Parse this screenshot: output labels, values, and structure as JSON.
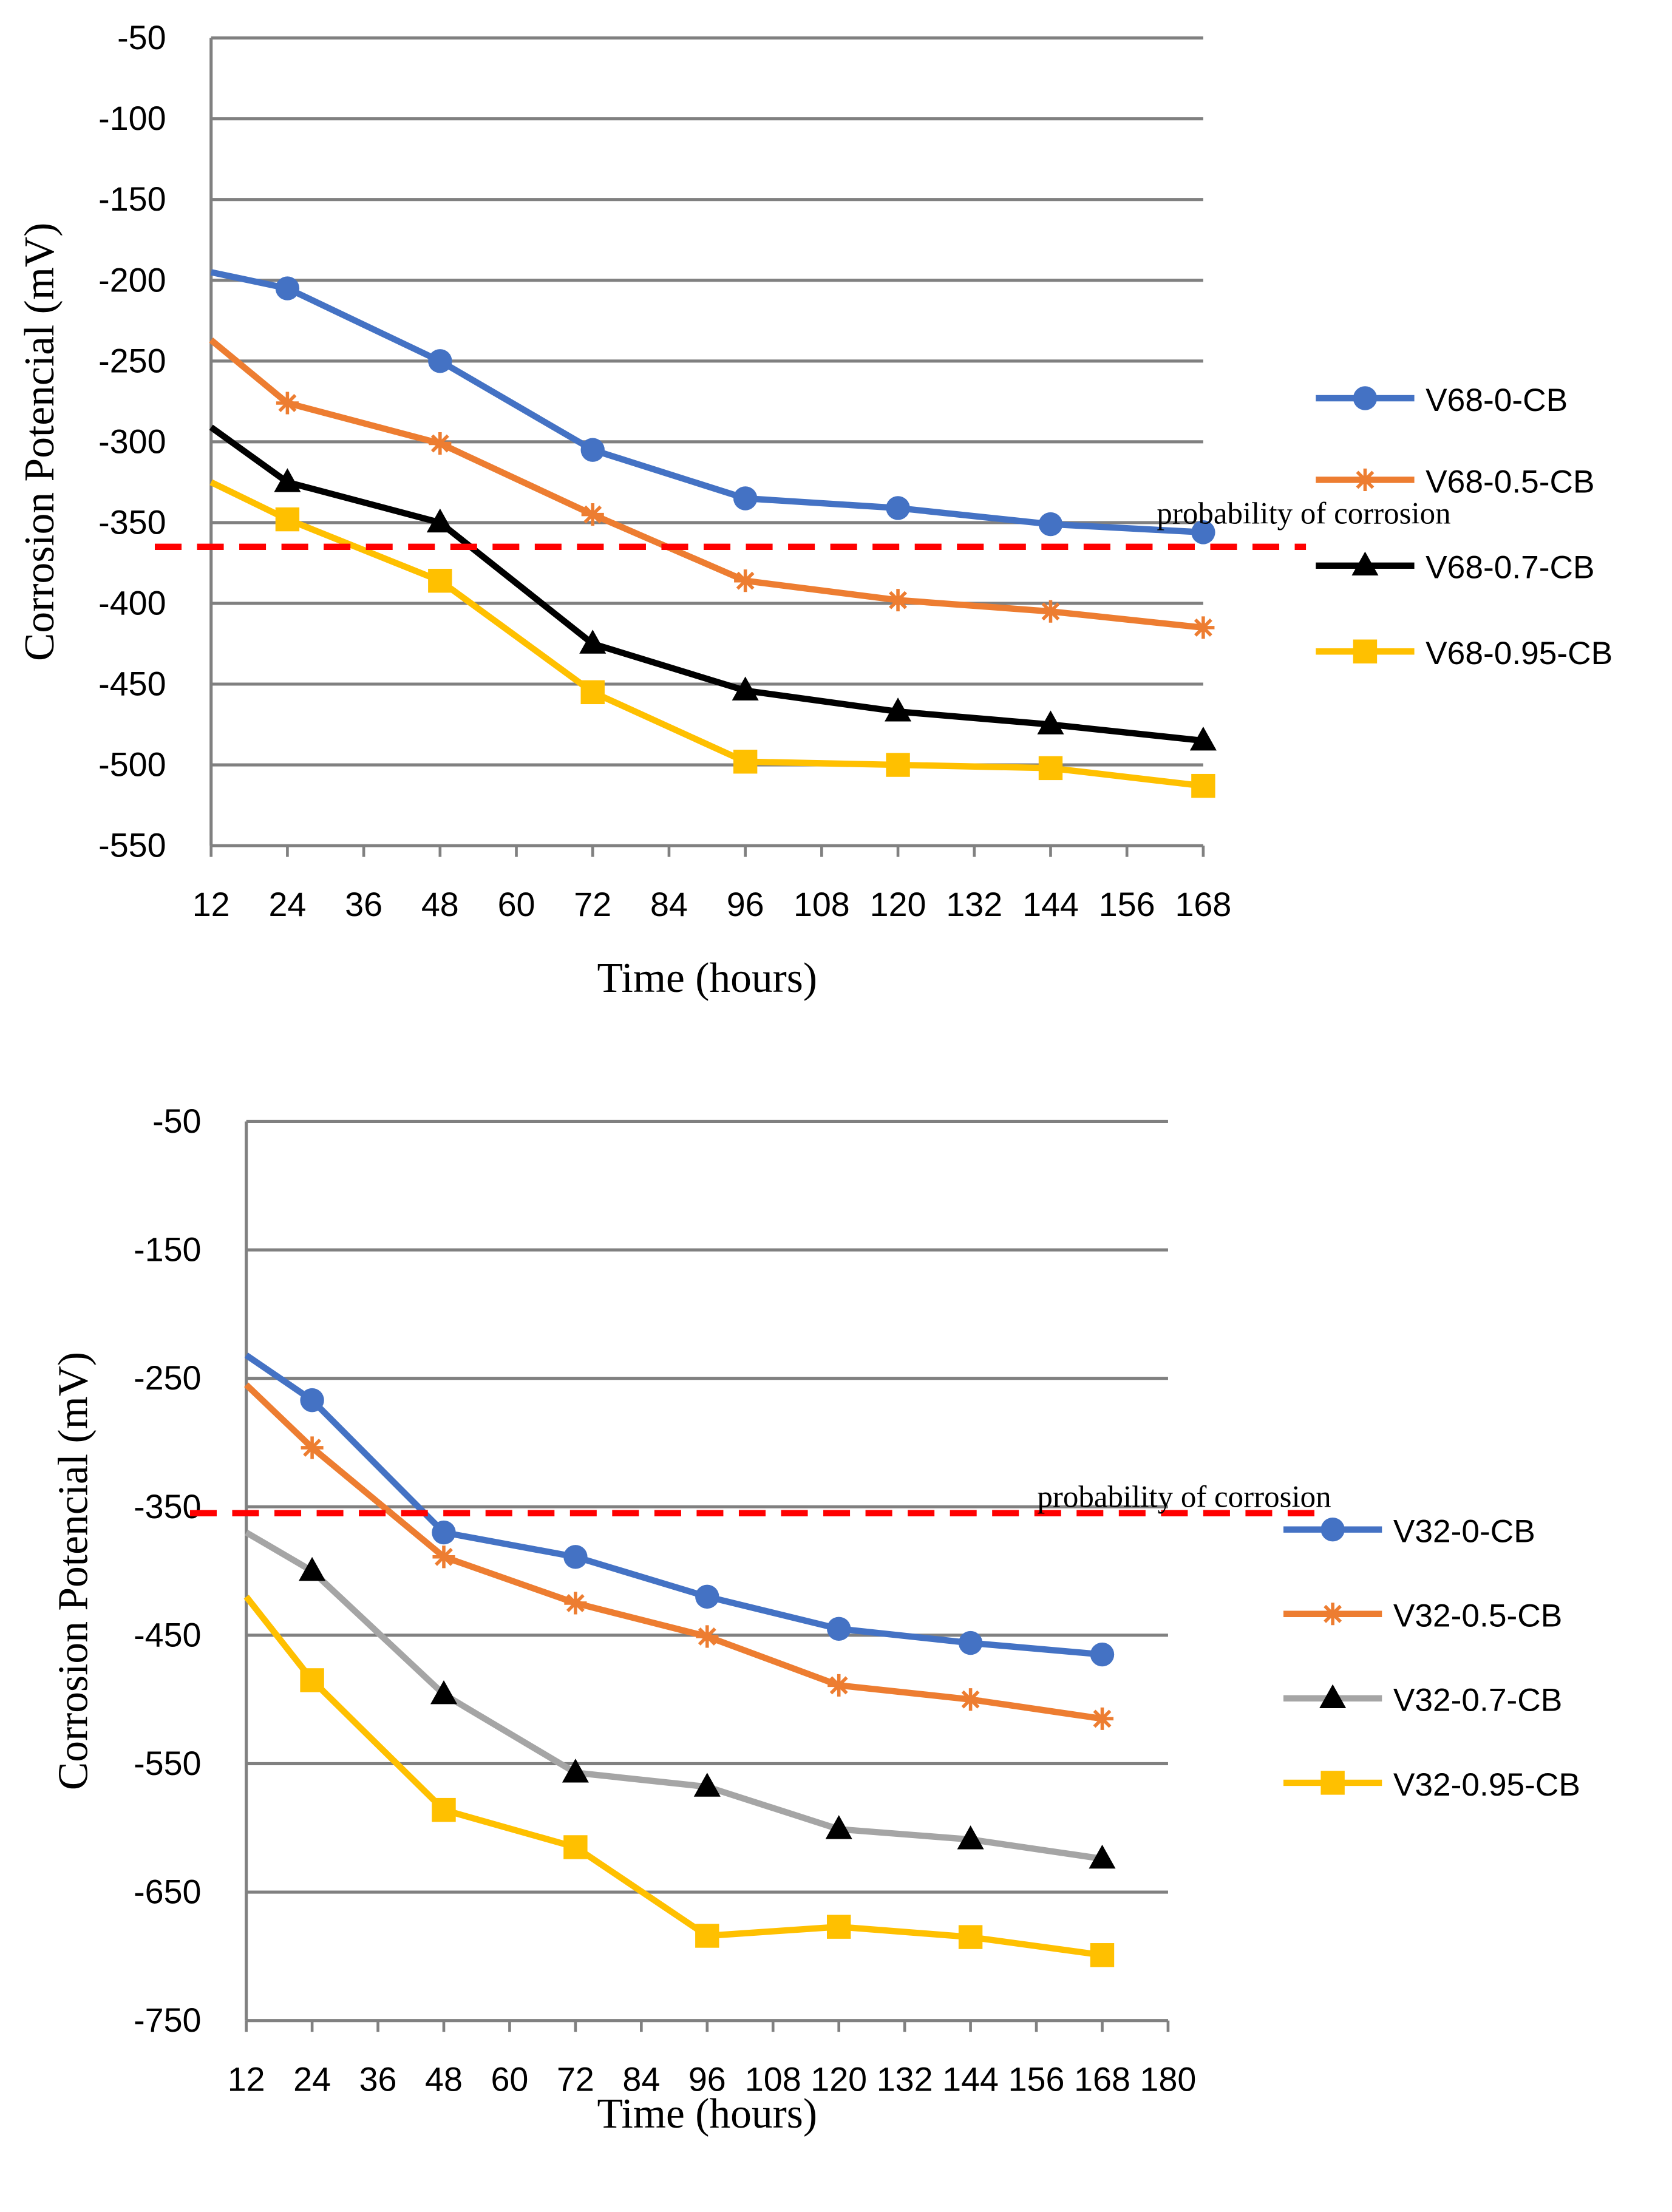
{
  "chart_data": [
    {
      "type": "line",
      "xlabel": "Time (hours)",
      "ylabel": "Corrosion Potencial (mV)",
      "xlim": [
        12,
        168
      ],
      "xticks": [
        12,
        24,
        36,
        48,
        60,
        72,
        84,
        96,
        108,
        120,
        132,
        144,
        156,
        168
      ],
      "ylim": [
        -550,
        -50
      ],
      "yticks": [
        -50,
        -100,
        -150,
        -200,
        -250,
        -300,
        -350,
        -400,
        -450,
        -500,
        -550
      ],
      "grid": "horizontal",
      "legend_position": "right",
      "threshold": {
        "value": -365,
        "label": "probability of corrosion",
        "color": "#ff0000"
      },
      "series": [
        {
          "name": "V68-0-CB",
          "color": "#4472c4",
          "marker": "circle",
          "x": [
            12,
            24,
            48,
            72,
            96,
            120,
            144,
            168
          ],
          "values": [
            -195,
            -205,
            -250,
            -305,
            -335,
            -341,
            -351,
            -356
          ]
        },
        {
          "name": "V68-0.5-CB",
          "color": "#ed7d31",
          "marker": "star",
          "x": [
            12,
            24,
            48,
            72,
            96,
            120,
            144,
            168
          ],
          "values": [
            -237,
            -276,
            -301,
            -345,
            -386,
            -398,
            -405,
            -415
          ]
        },
        {
          "name": "V68-0.7-CB",
          "color": "#000000",
          "marker": "triangle",
          "x": [
            12,
            24,
            48,
            72,
            96,
            120,
            144,
            168
          ],
          "values": [
            -291,
            -325,
            -350,
            -425,
            -454,
            -467,
            -475,
            -485
          ]
        },
        {
          "name": "V68-0.95-CB",
          "color": "#ffc000",
          "marker": "square",
          "x": [
            12,
            24,
            48,
            72,
            96,
            120,
            144,
            168
          ],
          "values": [
            -325,
            -348,
            -386,
            -455,
            -498,
            -500,
            -502,
            -513
          ]
        }
      ]
    },
    {
      "type": "line",
      "xlabel": "Time (hours)",
      "ylabel": "Corrosion Potencial (mV)",
      "xlim": [
        12,
        180
      ],
      "xticks": [
        12,
        24,
        36,
        48,
        60,
        72,
        84,
        96,
        108,
        120,
        132,
        144,
        156,
        168,
        180
      ],
      "ylim": [
        -750,
        -50
      ],
      "yticks": [
        -50,
        -150,
        -250,
        -350,
        -450,
        -550,
        -650,
        -750
      ],
      "grid": "horizontal",
      "legend_position": "right",
      "threshold": {
        "value": -355,
        "label": "probability of corrosion",
        "color": "#ff0000"
      },
      "series": [
        {
          "name": "V32-0-CB",
          "color": "#4472c4",
          "marker": "circle",
          "x": [
            12,
            24,
            48,
            72,
            96,
            120,
            144,
            168
          ],
          "values": [
            -232,
            -267,
            -370,
            -389,
            -420,
            -445,
            -456,
            -465
          ]
        },
        {
          "name": "V32-0.5-CB",
          "color": "#ed7d31",
          "marker": "star",
          "x": [
            12,
            24,
            48,
            72,
            96,
            120,
            144,
            168
          ],
          "values": [
            -255,
            -304,
            -389,
            -425,
            -451,
            -489,
            -500,
            -515
          ]
        },
        {
          "name": "V32-0.7-CB",
          "color": "#a5a5a5",
          "marker": "triangle",
          "marker_fill": "#000000",
          "x": [
            12,
            24,
            48,
            72,
            96,
            120,
            144,
            168
          ],
          "values": [
            -370,
            -400,
            -496,
            -557,
            -568,
            -601,
            -609,
            -624
          ]
        },
        {
          "name": "V32-0.95-CB",
          "color": "#ffc000",
          "marker": "square",
          "x": [
            12,
            24,
            48,
            72,
            96,
            120,
            144,
            168
          ],
          "values": [
            -420,
            -485,
            -586,
            -615,
            -684,
            -677,
            -685,
            -699
          ]
        }
      ]
    }
  ]
}
